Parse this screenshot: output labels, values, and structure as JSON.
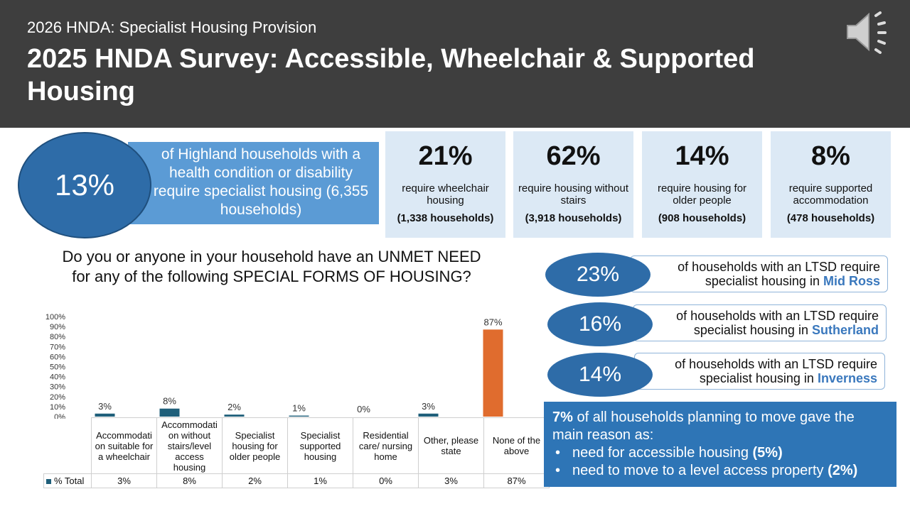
{
  "header": {
    "subtitle": "2026 HNDA: Specialist Housing Provision",
    "title": "2025 HNDA Survey: Accessible, Wheelchair & Supported Housing",
    "speaker_icon": "speaker-icon"
  },
  "headline": {
    "pct": "13%",
    "text": "of Highland households with a health condition or disability require specialist housing (6,355 households)"
  },
  "stats": [
    {
      "pct": "21%",
      "desc": "require wheelchair housing",
      "households": "(1,338 households)"
    },
    {
      "pct": "62%",
      "desc": "require housing without stairs",
      "households": "(3,918 households)"
    },
    {
      "pct": "14%",
      "desc": "require housing for older people",
      "households": "(908 households)"
    },
    {
      "pct": "8%",
      "desc": "require supported accommodation",
      "households": "(478 households)"
    }
  ],
  "question": "Do you or anyone in your household have an UNMET NEED for any of the following SPECIAL FORMS OF HOUSING?",
  "chart_data": {
    "type": "bar",
    "categories": [
      "Accommodati on suitable for a wheelchair",
      "Accommodati on without stairs/level access housing",
      "Specialist housing for older people",
      "Specialist supported housing",
      "Residential care/ nursing home",
      "Other, please state",
      "None of the above"
    ],
    "series": [
      {
        "name": "% Total",
        "values": [
          3,
          8,
          2,
          1,
          0,
          3,
          87
        ]
      }
    ],
    "data_labels": [
      "3%",
      "8%",
      "2%",
      "1%",
      "0%",
      "3%",
      "87%"
    ],
    "ylim": [
      0,
      100
    ],
    "yticks": [
      "0%",
      "10%",
      "20%",
      "30%",
      "40%",
      "50%",
      "60%",
      "70%",
      "80%",
      "90%",
      "100%"
    ],
    "colors": [
      "#1f5f7a",
      "#1f5f7a",
      "#1f5f7a",
      "#1f5f7a",
      "#1f5f7a",
      "#1f5f7a",
      "#e06c2e"
    ],
    "legend": "data-table",
    "grid": false
  },
  "ltsd": {
    "prefix_line1": "of households with an LTSD require",
    "prefix_line2": "specialist housing in",
    "items": [
      {
        "pct": "23%",
        "region": "Mid Ross"
      },
      {
        "pct": "16%",
        "region": "Sutherland"
      },
      {
        "pct": "14%",
        "region": "Inverness"
      }
    ]
  },
  "move": {
    "lead_pct": "7%",
    "lead_text": " of all households planning to move gave the main reason as:",
    "bullets": [
      {
        "text": "need for accessible housing ",
        "value": "(5%)"
      },
      {
        "text": "need to move to a level access property ",
        "value": "(2%)"
      }
    ]
  }
}
